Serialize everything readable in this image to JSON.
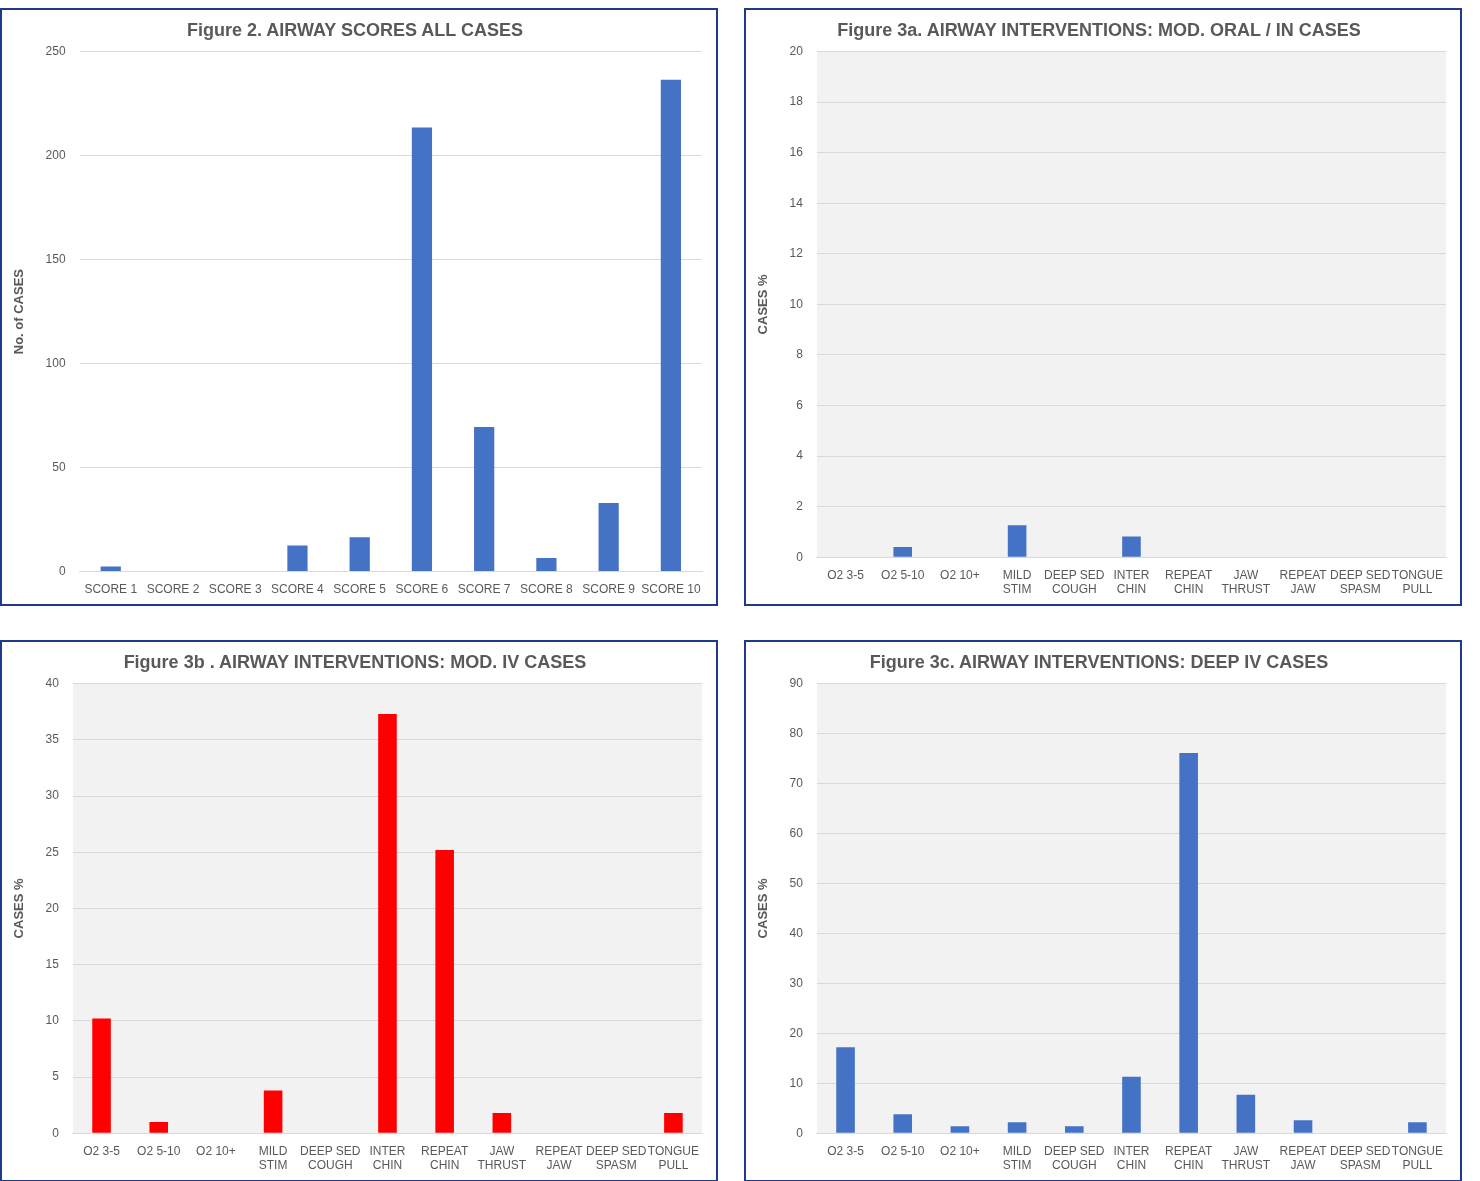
{
  "chart_data": [
    {
      "type": "bar",
      "title": "Figure 2. AIRWAY SCORES ALL CASES",
      "ylabel": "No. of CASES",
      "categories": [
        "SCORE 1",
        "SCORE 2",
        "SCORE 3",
        "SCORE 4",
        "SCORE 5",
        "SCORE 6",
        "SCORE 7",
        "SCORE 8",
        "SCORE 9",
        "SCORE 10"
      ],
      "values": [
        2.5,
        0,
        0,
        12.5,
        16.5,
        213.5,
        69.5,
        6.5,
        33,
        236.5
      ],
      "color": "#4472c4",
      "ylim": [
        0,
        250
      ],
      "yticks": [
        0,
        50,
        100,
        150,
        200,
        250
      ],
      "grid": "y"
    },
    {
      "type": "bar",
      "title": "Figure 3a. AIRWAY INTERVENTIONS: MOD. ORAL / IN CASES",
      "ylabel": "CASES %",
      "categories": [
        "O2 3-5",
        "O2 5-10",
        "O2 10+",
        "MILD\nSTIM",
        "DEEP SED\nCOUGH",
        "INTER\nCHIN",
        "REPEAT\nCHIN",
        "JAW\nTHRUST",
        "REPEAT\nJAW",
        "DEEP SED\nSPASM",
        "TONGUE\nPULL"
      ],
      "values": [
        0,
        0.4,
        0,
        1.26,
        0,
        0.82,
        0,
        0,
        0,
        0,
        0
      ],
      "color": "#4472c4",
      "ylim": [
        0,
        20
      ],
      "yticks": [
        0,
        2,
        4,
        6,
        8,
        10,
        12,
        14,
        16,
        18,
        20
      ],
      "grid": "y"
    },
    {
      "type": "bar",
      "title": "Figure 3b . AIRWAY INTERVENTIONS: MOD. IV CASES",
      "ylabel": "CASES %",
      "categories": [
        "O2 3-5",
        "O2 5-10",
        "O2 10+",
        "MILD\nSTIM",
        "DEEP SED\nCOUGH",
        "INTER\nCHIN",
        "REPEAT\nCHIN",
        "JAW\nTHRUST",
        "REPEAT\nJAW",
        "DEEP SED\nSPASM",
        "TONGUE\nPULL"
      ],
      "values": [
        10.2,
        1,
        0,
        3.8,
        0,
        37.3,
        25.2,
        1.8,
        0,
        0,
        1.8
      ],
      "color": "#ff0000",
      "ylim": [
        0,
        40
      ],
      "yticks": [
        0,
        5,
        10,
        15,
        20,
        25,
        30,
        35,
        40
      ],
      "grid": "y"
    },
    {
      "type": "bar",
      "title": "Figure 3c. AIRWAY INTERVENTIONS: DEEP IV CASES",
      "ylabel": "CASES %",
      "categories": [
        "O2 3-5",
        "O2 5-10",
        "O2 10+",
        "MILD\nSTIM",
        "DEEP SED\nCOUGH",
        "INTER\nCHIN",
        "REPEAT\nCHIN",
        "JAW\nTHRUST",
        "REPEAT\nJAW",
        "DEEP SED\nSPASM",
        "TONGUE\nPULL"
      ],
      "values": [
        17.2,
        3.8,
        1.4,
        2.2,
        1.4,
        11.3,
        76.1,
        7.7,
        2.6,
        0,
        2.2
      ],
      "color": "#4472c4",
      "ylim": [
        0,
        90
      ],
      "yticks": [
        0,
        10,
        20,
        30,
        40,
        50,
        60,
        70,
        80,
        90
      ],
      "grid": "y"
    }
  ]
}
